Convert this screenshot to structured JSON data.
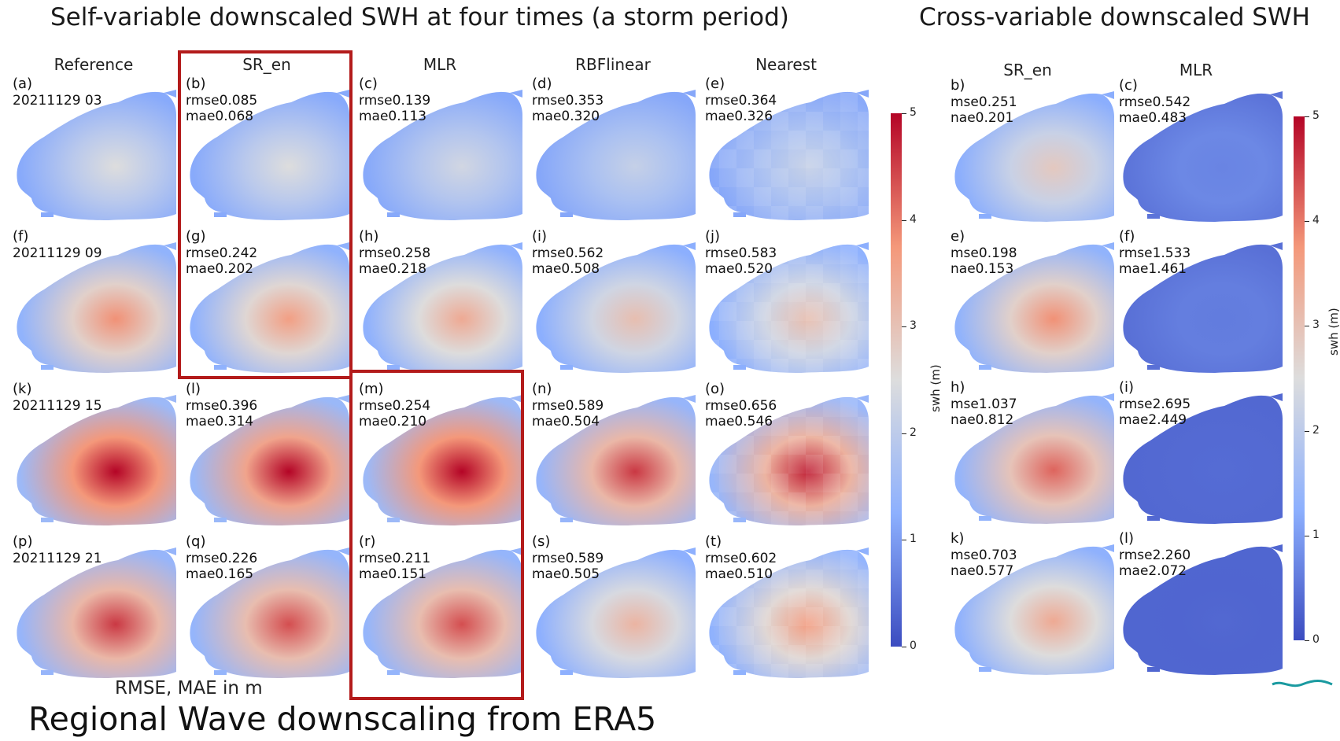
{
  "titles": {
    "left": "Self-variable downscaled SWH at four times (a storm period)",
    "right": "Cross-variable downscaled SWH"
  },
  "left_columns": [
    "Reference",
    "SR_en",
    "MLR",
    "RBFlinear",
    "Nearest"
  ],
  "right_columns": [
    "SR_en",
    "MLR"
  ],
  "left_rows": [
    {
      "panels": [
        {
          "label": "(a)",
          "line1": "20211129 03",
          "line2": "",
          "intensity": 0.2
        },
        {
          "label": "(b)",
          "line1": "rmse0.085",
          "line2": "mae0.068",
          "intensity": 0.2
        },
        {
          "label": "(c)",
          "line1": "rmse0.139",
          "line2": "mae0.113",
          "intensity": 0.15
        },
        {
          "label": "(d)",
          "line1": "rmse0.353",
          "line2": "mae0.320",
          "intensity": 0.1
        },
        {
          "label": "(e)",
          "line1": "rmse0.364",
          "line2": "mae0.326",
          "intensity": 0.1
        }
      ]
    },
    {
      "panels": [
        {
          "label": "(f)",
          "line1": "20211129 09",
          "line2": "",
          "intensity": 0.55
        },
        {
          "label": "(g)",
          "line1": "rmse0.242",
          "line2": "mae0.202",
          "intensity": 0.5
        },
        {
          "label": "(h)",
          "line1": "rmse0.258",
          "line2": "mae0.218",
          "intensity": 0.45
        },
        {
          "label": "(i)",
          "line1": "rmse0.562",
          "line2": "mae0.508",
          "intensity": 0.35
        },
        {
          "label": "(j)",
          "line1": "rmse0.583",
          "line2": "mae0.520",
          "intensity": 0.35
        }
      ]
    },
    {
      "panels": [
        {
          "label": "(k)",
          "line1": "20211129 15",
          "line2": "",
          "intensity": 1.0
        },
        {
          "label": "(l)",
          "line1": "rmse0.396",
          "line2": "mae0.314",
          "intensity": 0.9
        },
        {
          "label": "(m)",
          "line1": "rmse0.254",
          "line2": "mae0.210",
          "intensity": 1.0
        },
        {
          "label": "(n)",
          "line1": "rmse0.589",
          "line2": "mae0.504",
          "intensity": 0.75
        },
        {
          "label": "(o)",
          "line1": "rmse0.656",
          "line2": "mae0.546",
          "intensity": 0.8
        }
      ]
    },
    {
      "panels": [
        {
          "label": "(p)",
          "line1": "20211129 21",
          "line2": "",
          "intensity": 0.75
        },
        {
          "label": "(q)",
          "line1": "rmse0.226",
          "line2": "mae0.165",
          "intensity": 0.7
        },
        {
          "label": "(r)",
          "line1": "rmse0.211",
          "line2": "mae0.151",
          "intensity": 0.7
        },
        {
          "label": "(s)",
          "line1": "rmse0.589",
          "line2": "mae0.505",
          "intensity": 0.4
        },
        {
          "label": "(t)",
          "line1": "rmse0.602",
          "line2": "mae0.510",
          "intensity": 0.5
        }
      ]
    }
  ],
  "right_rows": [
    {
      "panels": [
        {
          "label": "b)",
          "line1": "mse0.251",
          "line2": "nae0.201",
          "intensity": 0.3
        },
        {
          "label": "(c)",
          "line1": "rmse0.542",
          "line2": "mae0.483",
          "intensity": -0.2
        }
      ]
    },
    {
      "panels": [
        {
          "label": "e)",
          "line1": "mse0.198",
          "line2": "nae0.153",
          "intensity": 0.55
        },
        {
          "label": "(f)",
          "line1": "rmse1.533",
          "line2": "mae1.461",
          "intensity": -0.3
        }
      ]
    },
    {
      "panels": [
        {
          "label": "h)",
          "line1": "mse1.037",
          "line2": "nae0.812",
          "intensity": 0.65
        },
        {
          "label": "(i)",
          "line1": "rmse2.695",
          "line2": "mae2.449",
          "intensity": -0.5
        }
      ]
    },
    {
      "panels": [
        {
          "label": "k)",
          "line1": "mse0.703",
          "line2": "nae0.577",
          "intensity": 0.45
        },
        {
          "label": "(l)",
          "line1": "rmse2.260",
          "line2": "mae2.072",
          "intensity": -0.55
        }
      ]
    }
  ],
  "colorbar": {
    "label": "swh (m)",
    "ticks": [
      "0",
      "1",
      "2",
      "3",
      "4",
      "5"
    ],
    "min": 0,
    "max": 5,
    "colors": [
      "#3b4cc0",
      "#8db0fe",
      "#dddddd",
      "#f4987a",
      "#b40426"
    ]
  },
  "footer": {
    "units_note": "RMSE, MAE in m",
    "slide_title": "Regional Wave downscaling from ERA5"
  }
}
